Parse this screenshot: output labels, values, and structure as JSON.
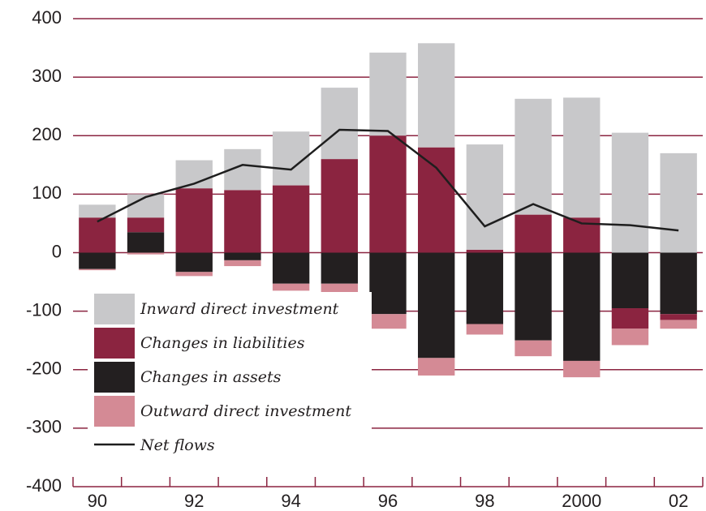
{
  "chart_data": {
    "type": "bar",
    "stacked": true,
    "categories": [
      "90",
      null,
      "92",
      null,
      "94",
      null,
      "96",
      null,
      "98",
      null,
      "2000",
      null,
      "02"
    ],
    "series": [
      {
        "name": "Inward direct investment",
        "color": "#c8c8ca",
        "values": [
          22,
          40,
          48,
          70,
          92,
          122,
          142,
          178,
          180,
          198,
          205,
          205,
          170
        ]
      },
      {
        "name": "Changes in liabilities",
        "color": "#8b2440",
        "values": [
          60,
          25,
          110,
          107,
          115,
          160,
          200,
          180,
          5,
          65,
          60,
          -35,
          -10
        ]
      },
      {
        "name": "Changes in assets",
        "color": "#231f20",
        "values": [
          -28,
          35,
          -33,
          -13,
          -53,
          -53,
          -105,
          -180,
          -122,
          -150,
          -185,
          -95,
          -105
        ]
      },
      {
        "name": "Outward direct investment",
        "color": "#d48a95",
        "values": [
          -2,
          -3,
          -7,
          -10,
          -12,
          -22,
          -25,
          -30,
          -18,
          -27,
          -28,
          -28,
          -15
        ]
      },
      {
        "name": "Net flows",
        "color": "#1e1e1e",
        "type": "line",
        "values": [
          53,
          95,
          118,
          150,
          142,
          210,
          208,
          145,
          45,
          83,
          50,
          47,
          38
        ]
      }
    ],
    "ylim": [
      -400,
      400
    ],
    "yticks": [
      -400,
      -300,
      -200,
      -100,
      0,
      100,
      200,
      300,
      400
    ],
    "grid": true,
    "grid_color": "#8b2440",
    "legend": "lower left"
  }
}
